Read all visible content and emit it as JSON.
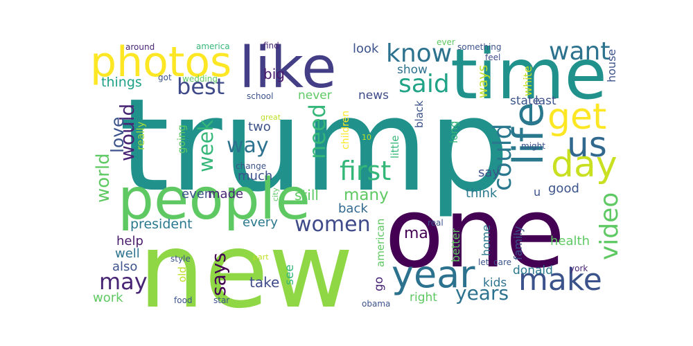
{
  "words": [
    {
      "text": "trump",
      "color": "#21918c"
    },
    {
      "text": "one",
      "color": "#440154"
    },
    {
      "text": "new",
      "color": "#8fd744"
    },
    {
      "text": "like",
      "color": "#433e85"
    },
    {
      "text": "time",
      "color": "#21918c"
    },
    {
      "text": "people",
      "color": "#5ec962"
    },
    {
      "text": "photos",
      "color": "#fde725"
    },
    {
      "text": "life",
      "color": "#2a788e"
    },
    {
      "text": "day",
      "color": "#c8e020"
    },
    {
      "text": "year",
      "color": "#2c728e"
    },
    {
      "text": "make",
      "color": "#3b528b"
    },
    {
      "text": "get",
      "color": "#fde725"
    },
    {
      "text": "us",
      "color": "#31688e"
    },
    {
      "text": "know",
      "color": "#2c728e"
    },
    {
      "text": "want",
      "color": "#2c728e"
    },
    {
      "text": "best",
      "color": "#3e4a89"
    },
    {
      "text": "said",
      "color": "#20a386"
    },
    {
      "text": "first",
      "color": "#35b779"
    },
    {
      "text": "could",
      "color": "#2a788e"
    },
    {
      "text": "way",
      "color": "#2c728e"
    },
    {
      "text": "week",
      "color": "#35b779"
    },
    {
      "text": "would",
      "color": "#482475"
    },
    {
      "text": "love",
      "color": "#3b528b"
    },
    {
      "text": "world",
      "color": "#5ec962"
    },
    {
      "text": "women",
      "color": "#3e4a89"
    },
    {
      "text": "video",
      "color": "#5ec962"
    },
    {
      "text": "may",
      "color": "#482475"
    },
    {
      "text": "need",
      "color": "#35b779"
    },
    {
      "text": "years",
      "color": "#2c728e"
    },
    {
      "text": "says",
      "color": "#440154"
    },
    {
      "text": "many",
      "color": "#5ec962"
    },
    {
      "text": "president",
      "color": "#2a788e"
    },
    {
      "text": "things",
      "color": "#1fa088"
    },
    {
      "text": "ways",
      "color": "#bddf26"
    },
    {
      "text": "never",
      "color": "#5ec962"
    },
    {
      "text": "news",
      "color": "#3e4a89"
    },
    {
      "text": "look",
      "color": "#3b528b"
    },
    {
      "text": "show",
      "color": "#2c728e"
    },
    {
      "text": "big",
      "color": "#481a6c"
    },
    {
      "text": "two",
      "color": "#3b528b"
    },
    {
      "text": "even",
      "color": "#3b528b"
    },
    {
      "text": "made",
      "color": "#482475"
    },
    {
      "text": "much",
      "color": "#3b528b"
    },
    {
      "text": "still",
      "color": "#5ec962"
    },
    {
      "text": "every",
      "color": "#2a788e"
    },
    {
      "text": "back",
      "color": "#31688e"
    },
    {
      "text": "man",
      "color": "#440154"
    },
    {
      "text": "think",
      "color": "#2a788e"
    },
    {
      "text": "good",
      "color": "#3b528b"
    },
    {
      "text": "say",
      "color": "#3b528b"
    },
    {
      "text": "help",
      "color": "#481a6c"
    },
    {
      "text": "well",
      "color": "#2c728e"
    },
    {
      "text": "also",
      "color": "#3b528b"
    },
    {
      "text": "work",
      "color": "#5ec962"
    },
    {
      "text": "take",
      "color": "#3e4a89"
    },
    {
      "text": "see",
      "color": "#35b779"
    },
    {
      "text": "go",
      "color": "#482475"
    },
    {
      "text": "american",
      "color": "#5ec962"
    },
    {
      "text": "kids",
      "color": "#2c728e"
    },
    {
      "text": "right",
      "color": "#5ec962"
    },
    {
      "text": "donald",
      "color": "#2a788e"
    },
    {
      "text": "health",
      "color": "#5ec962"
    },
    {
      "text": "home",
      "color": "#2a788e"
    },
    {
      "text": "better",
      "color": "#5ec962"
    },
    {
      "text": "family",
      "color": "#3b528b"
    },
    {
      "text": "state",
      "color": "#3b528b"
    },
    {
      "text": "last",
      "color": "#3b528b"
    },
    {
      "text": "white",
      "color": "#c8e020"
    },
    {
      "text": "house",
      "color": "#3b528b"
    },
    {
      "text": "going",
      "color": "#5ec962"
    },
    {
      "text": "really",
      "color": "#a0da39"
    },
    {
      "text": "old",
      "color": "#bddf26"
    },
    {
      "text": "children",
      "color": "#fde725"
    },
    {
      "text": "little",
      "color": "#35b779"
    },
    {
      "text": "black",
      "color": "#3b528b"
    },
    {
      "text": "long",
      "color": "#35b779"
    },
    {
      "text": "u",
      "color": "#3b528b"
    },
    {
      "text": "around",
      "color": "#482475"
    },
    {
      "text": "america",
      "color": "#35b779"
    },
    {
      "text": "find",
      "color": "#482475"
    },
    {
      "text": "ever",
      "color": "#5ec962"
    },
    {
      "text": "something",
      "color": "#3b528b"
    },
    {
      "text": "feel",
      "color": "#3e4a89"
    },
    {
      "text": "got",
      "color": "#3b528b"
    },
    {
      "text": "wedding",
      "color": "#5ec962"
    },
    {
      "text": "school",
      "color": "#3b528b"
    },
    {
      "text": "great",
      "color": "#bddf26"
    },
    {
      "text": "10",
      "color": "#bddf26"
    },
    {
      "text": "change",
      "color": "#3b528b"
    },
    {
      "text": "city",
      "color": "#5ec962"
    },
    {
      "text": "might",
      "color": "#3b528b"
    },
    {
      "text": "real",
      "color": "#3b528b"
    },
    {
      "text": "let",
      "color": "#3b528b"
    },
    {
      "text": "care",
      "color": "#3b528b"
    },
    {
      "text": "york",
      "color": "#482475"
    },
    {
      "text": "style",
      "color": "#3b528b"
    },
    {
      "text": "part",
      "color": "#bddf26"
    },
    {
      "text": "food",
      "color": "#3b528b"
    },
    {
      "text": "star",
      "color": "#3b528b"
    },
    {
      "text": "obama",
      "color": "#3b528b"
    }
  ]
}
